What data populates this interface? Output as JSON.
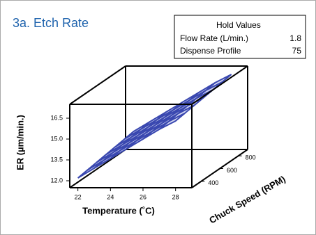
{
  "chart_data": {
    "type": "surface",
    "title": "3a. Etch Rate",
    "x_label": "Temperature (˚C)",
    "y_label": "Chuck Speed (RPM)",
    "z_label": "ER (µm/min.)",
    "x": [
      22,
      23,
      24,
      25,
      26,
      27,
      28
    ],
    "y": [
      300,
      400,
      500,
      600,
      700,
      800,
      900
    ],
    "z": [
      [
        12.2,
        12.9,
        13.6,
        14.3,
        15.0,
        15.7,
        16.3
      ],
      [
        12.3,
        13.0,
        13.7,
        14.4,
        15.1,
        15.8,
        16.4
      ],
      [
        12.4,
        13.1,
        13.8,
        14.5,
        15.2,
        15.9,
        16.5
      ],
      [
        12.5,
        13.2,
        13.9,
        14.6,
        15.3,
        16.0,
        16.6
      ],
      [
        12.6,
        13.3,
        14.0,
        14.7,
        15.4,
        16.1,
        16.7
      ],
      [
        12.7,
        13.4,
        14.1,
        14.8,
        15.5,
        16.2,
        16.8
      ],
      [
        12.8,
        13.5,
        14.2,
        14.9,
        15.6,
        16.3,
        16.9
      ]
    ],
    "xlim": [
      21.5,
      29
    ],
    "xticks": [
      22,
      24,
      26,
      28
    ],
    "ylim": [
      300,
      900
    ],
    "yticks": [
      400,
      600,
      800
    ],
    "zlim": [
      11.5,
      17.5
    ],
    "zticks": [
      {
        "value": 12,
        "label": "12.0"
      },
      13.5,
      {
        "value": 15,
        "label": "15.0"
      },
      16.5
    ],
    "color": "#3a48b0"
  },
  "hold_values": {
    "title": "Hold Values",
    "rows": [
      [
        "Flow Rate (L/min.)",
        1.8
      ],
      [
        "Dispense Profile",
        75
      ]
    ]
  }
}
